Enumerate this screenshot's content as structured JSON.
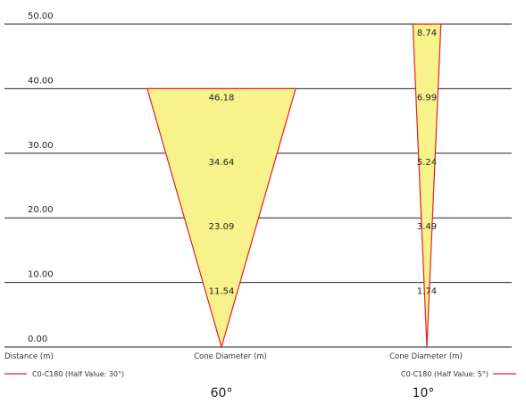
{
  "chart_data": {
    "type": "area",
    "y_axis": {
      "range": [
        0,
        50
      ],
      "ticks": [
        "0.00",
        "10.00",
        "20.00",
        "30.00",
        "40.00",
        "50.00"
      ],
      "title": "Distance (m)"
    },
    "grid": true,
    "colors": {
      "fill": "#f7f28a",
      "edge": "#e0202a",
      "grid": "#222222"
    },
    "cones": [
      {
        "angle_label": "60°",
        "axis_title": "Cone Diameter (m)",
        "legend": "C0-C180 (Half Value: 30°)",
        "legend_position": "left",
        "distances": [
          10,
          20,
          30,
          40
        ],
        "diameters": [
          11.54,
          23.09,
          34.64,
          46.18
        ],
        "diameter_labels": [
          "11.54",
          "23.09",
          "34.64",
          "46.18"
        ]
      },
      {
        "angle_label": "10°",
        "axis_title": "Cone Diameter (m)",
        "legend": "C0-C180 (Half Value: 5°)",
        "legend_position": "right",
        "distances": [
          10,
          20,
          30,
          40,
          50
        ],
        "diameters": [
          1.74,
          3.49,
          5.24,
          6.99,
          8.74
        ],
        "diameter_labels": [
          "1.74",
          "3.49",
          "5.24",
          "6.99",
          "8.74"
        ]
      }
    ]
  }
}
